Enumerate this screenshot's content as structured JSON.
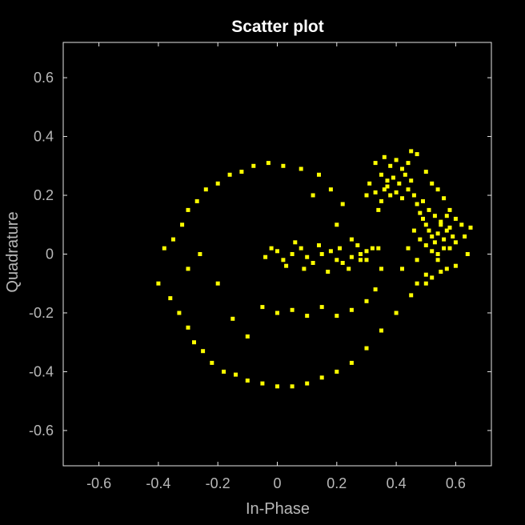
{
  "chart_data": {
    "type": "scatter",
    "title": "Scatter plot",
    "xlabel": "In-Phase",
    "ylabel": "Quadrature",
    "xlim": [
      -0.72,
      0.72
    ],
    "ylim": [
      -0.72,
      0.72
    ],
    "xticks": [
      -0.6,
      -0.4,
      -0.2,
      0,
      0.2,
      0.4,
      0.6
    ],
    "yticks": [
      -0.6,
      -0.4,
      -0.2,
      0,
      0.2,
      0.4,
      0.6
    ],
    "xtick_labels": [
      "-0.6",
      "-0.4",
      "-0.2",
      "0",
      "0.2",
      "0.4",
      "0.6"
    ],
    "ytick_labels": [
      "-0.6",
      "-0.4",
      "-0.2",
      "0",
      "0.2",
      "0.4",
      "0.6"
    ],
    "grid": false,
    "legend": "none",
    "colors": {
      "background": "#000000",
      "axes_face": "#000000",
      "axes_box": "#e6e6e6",
      "tick_text": "#b8b8b8",
      "title_text": "#ffffff",
      "marker": "#ffff00"
    },
    "series": [
      {
        "marker": "square",
        "color": "#ffff00",
        "points": [
          [
            -0.4,
            -0.1
          ],
          [
            -0.38,
            0.02
          ],
          [
            -0.36,
            -0.15
          ],
          [
            -0.35,
            0.05
          ],
          [
            -0.33,
            -0.2
          ],
          [
            -0.32,
            0.1
          ],
          [
            -0.3,
            -0.25
          ],
          [
            -0.3,
            0.15
          ],
          [
            -0.28,
            -0.3
          ],
          [
            -0.27,
            0.18
          ],
          [
            -0.25,
            -0.33
          ],
          [
            -0.24,
            0.22
          ],
          [
            -0.22,
            -0.37
          ],
          [
            -0.2,
            0.24
          ],
          [
            -0.18,
            -0.4
          ],
          [
            -0.16,
            0.27
          ],
          [
            -0.14,
            -0.41
          ],
          [
            -0.12,
            0.28
          ],
          [
            -0.1,
            -0.43
          ],
          [
            -0.08,
            0.3
          ],
          [
            -0.05,
            -0.44
          ],
          [
            -0.03,
            0.31
          ],
          [
            0.0,
            -0.45
          ],
          [
            0.02,
            0.3
          ],
          [
            0.05,
            -0.45
          ],
          [
            0.08,
            0.29
          ],
          [
            0.1,
            -0.44
          ],
          [
            0.14,
            0.27
          ],
          [
            0.15,
            -0.42
          ],
          [
            0.2,
            -0.4
          ],
          [
            0.25,
            -0.37
          ],
          [
            0.3,
            -0.32
          ],
          [
            0.35,
            -0.26
          ],
          [
            0.4,
            -0.2
          ],
          [
            0.45,
            -0.14
          ],
          [
            0.5,
            -0.07
          ],
          [
            0.54,
            -0.02
          ],
          [
            -0.3,
            -0.05
          ],
          [
            -0.26,
            0.0
          ],
          [
            -0.2,
            -0.1
          ],
          [
            -0.15,
            -0.22
          ],
          [
            -0.1,
            -0.28
          ],
          [
            -0.05,
            -0.18
          ],
          [
            0.0,
            -0.2
          ],
          [
            0.05,
            -0.19
          ],
          [
            0.1,
            -0.21
          ],
          [
            0.15,
            -0.18
          ],
          [
            0.2,
            -0.21
          ],
          [
            0.25,
            -0.19
          ],
          [
            0.3,
            -0.16
          ],
          [
            0.33,
            -0.12
          ],
          [
            0.35,
            -0.05
          ],
          [
            0.2,
            0.1
          ],
          [
            0.22,
            0.17
          ],
          [
            0.18,
            0.22
          ],
          [
            0.12,
            0.2
          ],
          [
            0.25,
            0.05
          ],
          [
            0.28,
            -0.02
          ],
          [
            -0.04,
            -0.01
          ],
          [
            0.0,
            0.01
          ],
          [
            0.02,
            -0.02
          ],
          [
            0.05,
            0.0
          ],
          [
            0.08,
            0.02
          ],
          [
            0.1,
            -0.01
          ],
          [
            0.12,
            -0.03
          ],
          [
            0.15,
            0.0
          ],
          [
            0.18,
            0.01
          ],
          [
            0.2,
            -0.02
          ],
          [
            0.22,
            -0.03
          ],
          [
            0.25,
            -0.01
          ],
          [
            0.28,
            0.0
          ],
          [
            0.3,
            -0.02
          ],
          [
            0.32,
            0.02
          ],
          [
            -0.02,
            0.02
          ],
          [
            0.03,
            -0.04
          ],
          [
            0.06,
            0.04
          ],
          [
            0.09,
            -0.05
          ],
          [
            0.14,
            0.03
          ],
          [
            0.17,
            -0.06
          ],
          [
            0.21,
            0.02
          ],
          [
            0.24,
            -0.05
          ],
          [
            0.27,
            0.03
          ],
          [
            0.3,
            0.01
          ],
          [
            0.34,
            0.02
          ],
          [
            0.33,
            0.31
          ],
          [
            0.36,
            0.33
          ],
          [
            0.38,
            0.3
          ],
          [
            0.4,
            0.32
          ],
          [
            0.42,
            0.29
          ],
          [
            0.44,
            0.31
          ],
          [
            0.35,
            0.27
          ],
          [
            0.37,
            0.25
          ],
          [
            0.39,
            0.26
          ],
          [
            0.41,
            0.24
          ],
          [
            0.43,
            0.27
          ],
          [
            0.45,
            0.25
          ],
          [
            0.36,
            0.22
          ],
          [
            0.38,
            0.2
          ],
          [
            0.4,
            0.21
          ],
          [
            0.42,
            0.19
          ],
          [
            0.44,
            0.22
          ],
          [
            0.46,
            0.2
          ],
          [
            0.47,
            0.17
          ],
          [
            0.48,
            0.14
          ],
          [
            0.49,
            0.12
          ],
          [
            0.5,
            0.1
          ],
          [
            0.51,
            0.08
          ],
          [
            0.52,
            0.06
          ],
          [
            0.53,
            0.04
          ],
          [
            0.54,
            0.07
          ],
          [
            0.55,
            0.1
          ],
          [
            0.56,
            0.05
          ],
          [
            0.57,
            0.08
          ],
          [
            0.58,
            0.02
          ],
          [
            0.46,
            0.08
          ],
          [
            0.48,
            0.05
          ],
          [
            0.5,
            0.03
          ],
          [
            0.52,
            0.01
          ],
          [
            0.54,
            0.0
          ],
          [
            0.56,
            0.02
          ],
          [
            0.58,
            0.09
          ],
          [
            0.6,
            0.04
          ],
          [
            0.62,
            0.1
          ],
          [
            0.64,
            0.0
          ],
          [
            0.49,
            0.18
          ],
          [
            0.51,
            0.15
          ],
          [
            0.53,
            0.13
          ],
          [
            0.55,
            0.11
          ],
          [
            0.57,
            0.13
          ],
          [
            0.59,
            0.06
          ],
          [
            0.6,
            -0.04
          ],
          [
            0.57,
            -0.05
          ],
          [
            0.55,
            -0.06
          ],
          [
            0.45,
            0.35
          ],
          [
            0.47,
            0.34
          ],
          [
            0.5,
            0.28
          ],
          [
            0.52,
            0.24
          ],
          [
            0.54,
            0.22
          ],
          [
            0.56,
            0.19
          ],
          [
            0.58,
            0.15
          ],
          [
            0.6,
            0.12
          ],
          [
            0.63,
            0.06
          ],
          [
            0.65,
            0.09
          ],
          [
            0.37,
            0.23
          ],
          [
            0.35,
            0.18
          ],
          [
            0.33,
            0.21
          ],
          [
            0.31,
            0.24
          ],
          [
            0.3,
            0.2
          ],
          [
            0.34,
            0.15
          ],
          [
            0.44,
            0.02
          ],
          [
            0.42,
            -0.05
          ],
          [
            0.47,
            -0.02
          ],
          [
            0.5,
            -0.1
          ],
          [
            0.47,
            -0.1
          ],
          [
            0.52,
            -0.08
          ]
        ]
      }
    ]
  }
}
